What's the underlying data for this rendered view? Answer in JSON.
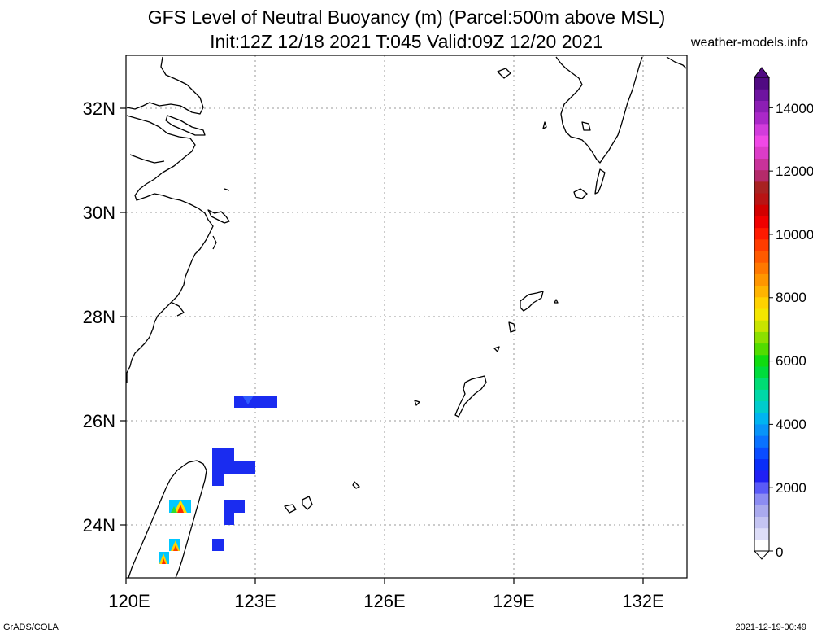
{
  "title_line1": "GFS Level of Neutral Buoyancy (m) (Parcel:500m above MSL)",
  "title_line2": "Init:12Z 12/18 2021 T:045 Valid:09Z 12/20 2021",
  "site": "weather-models.info",
  "footer_left": "GrADS/COLA",
  "footer_right": "2021-12-19-00:49",
  "lat_labels": [
    "32N",
    "30N",
    "28N",
    "26N",
    "24N"
  ],
  "lon_labels": [
    "120E",
    "123E",
    "126E",
    "129E",
    "132E"
  ],
  "colorbar_labels": [
    "14000",
    "12000",
    "10000",
    "8000",
    "6000",
    "4000",
    "2000",
    "0"
  ],
  "colors": {
    "coast": "#000000",
    "grid": "#9a9a9a",
    "lnb_blue": "#1a2cf0",
    "lnb_blue_light": "#2f4dff"
  },
  "colorbar_colors": [
    "#ffffff",
    "#ddddf8",
    "#c4c4f2",
    "#aaaaee",
    "#8c8cf2",
    "#5a5af8",
    "#2020f4",
    "#0a2ef8",
    "#0a4cff",
    "#0a72ff",
    "#0894f8",
    "#00b4f0",
    "#00cccc",
    "#00d8a8",
    "#00dc74",
    "#00dc3c",
    "#10dc10",
    "#52dc00",
    "#8ce000",
    "#c8e400",
    "#f4e600",
    "#ffd200",
    "#ffb400",
    "#ff9600",
    "#ff7800",
    "#ff5a00",
    "#ff3c00",
    "#ff1a00",
    "#f00000",
    "#d20000",
    "#b81414",
    "#a82222",
    "#b42a6a",
    "#c8329a",
    "#dc3cc8",
    "#f048e6",
    "#d23cdc",
    "#aa28c8",
    "#8c1eb4",
    "#6e14a0",
    "#500a82"
  ]
}
